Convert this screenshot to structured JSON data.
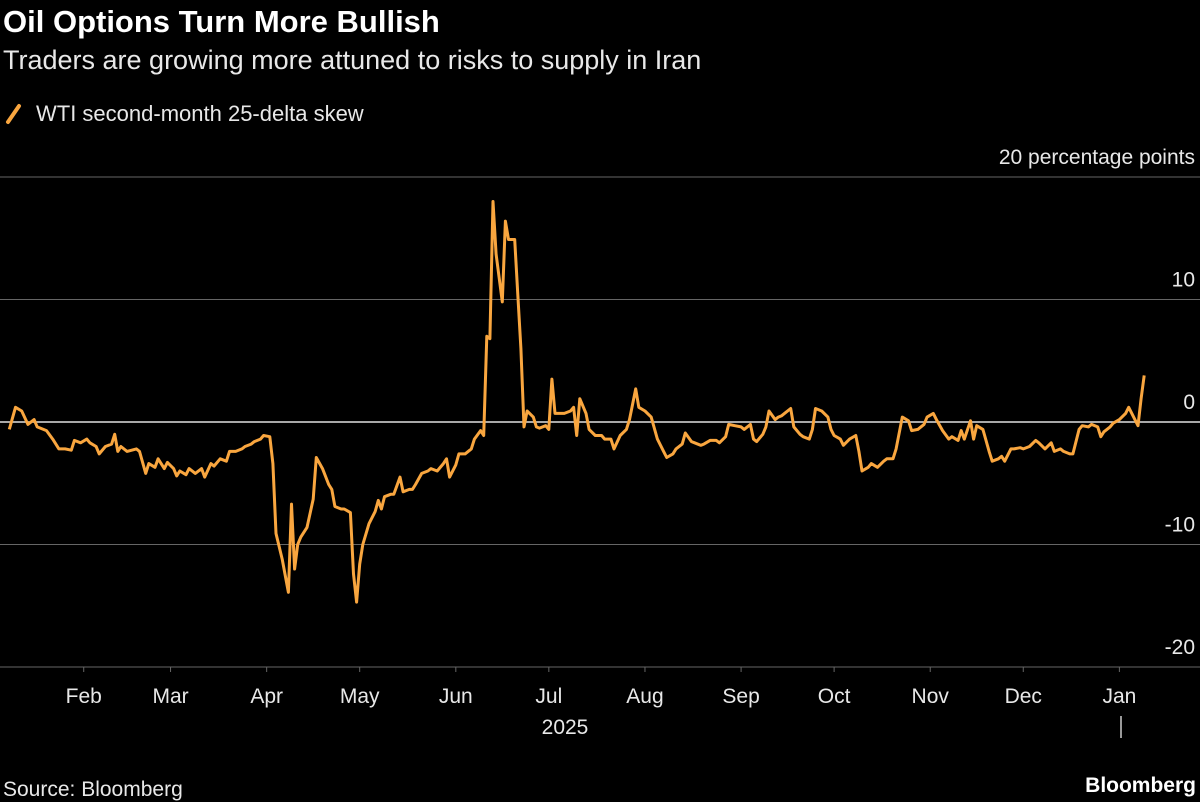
{
  "chart_data": {
    "type": "line",
    "title": "Oil Options Turn More Bullish",
    "subtitle": "Traders are growing more attuned to risks to supply in Iran",
    "source": "Source: Bloomberg",
    "brand": "Bloomberg",
    "year_label": "2025",
    "x": [
      7,
      9,
      11,
      13,
      15,
      16,
      19,
      21,
      23,
      25,
      27,
      28,
      30,
      32,
      33,
      35,
      36,
      38,
      40,
      41,
      42,
      43,
      45,
      48,
      49,
      51,
      52,
      54,
      55,
      57,
      58,
      60,
      61,
      62,
      64,
      65,
      67,
      69,
      70,
      72,
      73,
      75,
      77,
      78,
      80,
      82,
      83,
      85,
      86,
      88,
      89,
      91,
      92,
      93,
      95,
      97,
      98,
      99,
      100,
      101,
      103,
      105,
      106,
      108,
      110,
      111,
      112,
      114,
      115,
      117,
      118,
      119,
      120,
      121,
      123,
      125,
      126,
      127,
      128,
      130,
      131,
      133,
      134,
      136,
      137,
      138,
      140,
      142,
      143,
      145,
      147,
      148,
      149,
      151,
      152,
      154,
      156,
      157,
      159,
      160,
      161,
      162,
      163,
      164,
      166,
      167,
      168,
      170,
      171,
      172,
      173,
      174,
      176,
      177,
      178,
      180,
      181,
      182,
      183,
      185,
      186,
      188,
      189,
      190,
      191,
      193,
      194,
      196,
      198,
      199,
      201,
      202,
      204,
      206,
      207,
      209,
      210,
      212,
      214,
      216,
      218,
      219,
      221,
      222,
      224,
      225,
      227,
      228,
      230,
      231,
      233,
      235,
      236,
      238,
      239,
      241,
      243,
      244,
      246,
      247,
      248,
      250,
      251,
      252,
      254,
      255,
      256,
      257,
      259,
      260,
      262,
      263,
      265,
      266,
      267,
      269,
      271,
      272,
      273,
      275,
      276,
      278,
      280,
      281,
      282,
      284,
      285,
      287,
      289,
      290,
      292,
      293,
      295,
      297,
      298,
      300,
      302,
      303,
      305,
      306,
      308,
      310,
      311,
      313,
      314,
      315,
      317,
      318,
      319,
      321,
      323,
      324,
      326,
      327,
      328,
      330,
      331,
      333,
      334,
      336,
      338,
      339,
      341,
      343,
      344,
      346,
      347,
      349,
      350,
      352,
      353,
      355,
      356,
      358,
      359,
      360,
      362,
      363,
      365,
      367,
      368,
      370,
      371,
      372,
      373
    ],
    "series": [
      {
        "name": "WTI second-month 25-delta skew",
        "color": "#f9a63f",
        "values": [
          -0.6,
          1.2,
          0.9,
          -0.2,
          0.2,
          -0.4,
          -0.7,
          -1.4,
          -2.2,
          -2.2,
          -2.3,
          -1.5,
          -1.7,
          -1.4,
          -1.7,
          -2.0,
          -2.6,
          -2.0,
          -1.8,
          -1.0,
          -2.4,
          -2.0,
          -2.4,
          -2.2,
          -2.4,
          -4.2,
          -3.4,
          -3.7,
          -3.0,
          -3.8,
          -3.3,
          -3.8,
          -4.4,
          -4.0,
          -4.3,
          -3.8,
          -4.2,
          -3.8,
          -4.5,
          -3.4,
          -3.6,
          -3.0,
          -3.2,
          -2.4,
          -2.4,
          -2.2,
          -2.0,
          -1.8,
          -1.6,
          -1.4,
          -1.1,
          -1.2,
          -3.4,
          -9.1,
          -11.2,
          -13.9,
          -6.7,
          -12.0,
          -10.0,
          -9.4,
          -8.6,
          -6.3,
          -2.9,
          -3.8,
          -5.1,
          -5.5,
          -6.9,
          -7.1,
          -7.1,
          -7.4,
          -12.4,
          -14.7,
          -11.6,
          -10.0,
          -8.3,
          -7.3,
          -6.4,
          -7.1,
          -6.1,
          -5.9,
          -5.9,
          -4.5,
          -5.7,
          -5.5,
          -5.5,
          -5.1,
          -4.2,
          -4.0,
          -3.8,
          -4.0,
          -3.4,
          -3.0,
          -4.5,
          -3.5,
          -2.6,
          -2.6,
          -2.2,
          -1.4,
          -0.7,
          -1.1,
          7.0,
          6.8,
          18.0,
          13.7,
          9.8,
          16.4,
          14.9,
          14.9,
          10.4,
          6.0,
          -0.4,
          0.9,
          0.4,
          -0.4,
          -0.5,
          -0.3,
          -0.6,
          3.5,
          0.7,
          0.7,
          0.7,
          0.9,
          1.2,
          -1.1,
          1.9,
          0.7,
          -0.6,
          -1.1,
          -1.1,
          -1.4,
          -1.4,
          -2.2,
          -1.1,
          -0.6,
          0.2,
          2.7,
          1.2,
          0.9,
          0.4,
          -1.4,
          -2.4,
          -2.9,
          -2.6,
          -2.2,
          -1.8,
          -0.9,
          -1.6,
          -1.7,
          -1.9,
          -1.8,
          -1.5,
          -1.5,
          -1.7,
          -1.2,
          -0.2,
          -0.3,
          -0.4,
          -0.6,
          -0.2,
          -1.4,
          -1.6,
          -1.0,
          -0.4,
          0.9,
          0.2,
          0.4,
          0.5,
          0.7,
          1.1,
          -0.4,
          -1.0,
          -1.2,
          -1.4,
          -0.6,
          1.1,
          0.9,
          0.4,
          -0.6,
          -1.1,
          -1.4,
          -1.9,
          -1.4,
          -1.1,
          -2.4,
          -4.0,
          -3.7,
          -3.4,
          -3.7,
          -3.2,
          -3.0,
          -3.0,
          -2.2,
          0.4,
          0.1,
          -0.7,
          -0.6,
          -0.2,
          0.4,
          0.7,
          0.2,
          -0.7,
          -1.4,
          -1.2,
          -1.5,
          -0.7,
          -1.4,
          0.1,
          -1.4,
          -0.3,
          -0.6,
          -2.4,
          -3.2,
          -3.0,
          -2.8,
          -3.2,
          -2.2,
          -2.2,
          -2.1,
          -2.2,
          -2.0,
          -1.5,
          -1.7,
          -2.2,
          -1.7,
          -2.4,
          -2.2,
          -2.4,
          -2.6,
          -2.6,
          -0.6,
          -0.3,
          -0.4,
          -0.2,
          -0.4,
          -1.2,
          -0.8,
          -0.4,
          -0.1,
          0.2,
          0.7,
          1.2,
          0.2,
          -0.3,
          1.9,
          3.8
        ]
      }
    ],
    "xlim": [
      4,
      391
    ],
    "xticks": [
      {
        "value": 31,
        "label": "Feb"
      },
      {
        "value": 59,
        "label": "Mar"
      },
      {
        "value": 90,
        "label": "Apr"
      },
      {
        "value": 120,
        "label": "May"
      },
      {
        "value": 151,
        "label": "Jun"
      },
      {
        "value": 181,
        "label": "Jul"
      },
      {
        "value": 212,
        "label": "Aug"
      },
      {
        "value": 243,
        "label": "Sep"
      },
      {
        "value": 273,
        "label": "Oct"
      },
      {
        "value": 304,
        "label": "Nov"
      },
      {
        "value": 334,
        "label": "Dec"
      },
      {
        "value": 365,
        "label": "Jan"
      }
    ],
    "ylim": [
      -20,
      20
    ],
    "yticks": [
      -20,
      -10,
      0,
      10,
      {
        "value": 20,
        "label": "20 percentage points"
      }
    ],
    "grid": true
  }
}
